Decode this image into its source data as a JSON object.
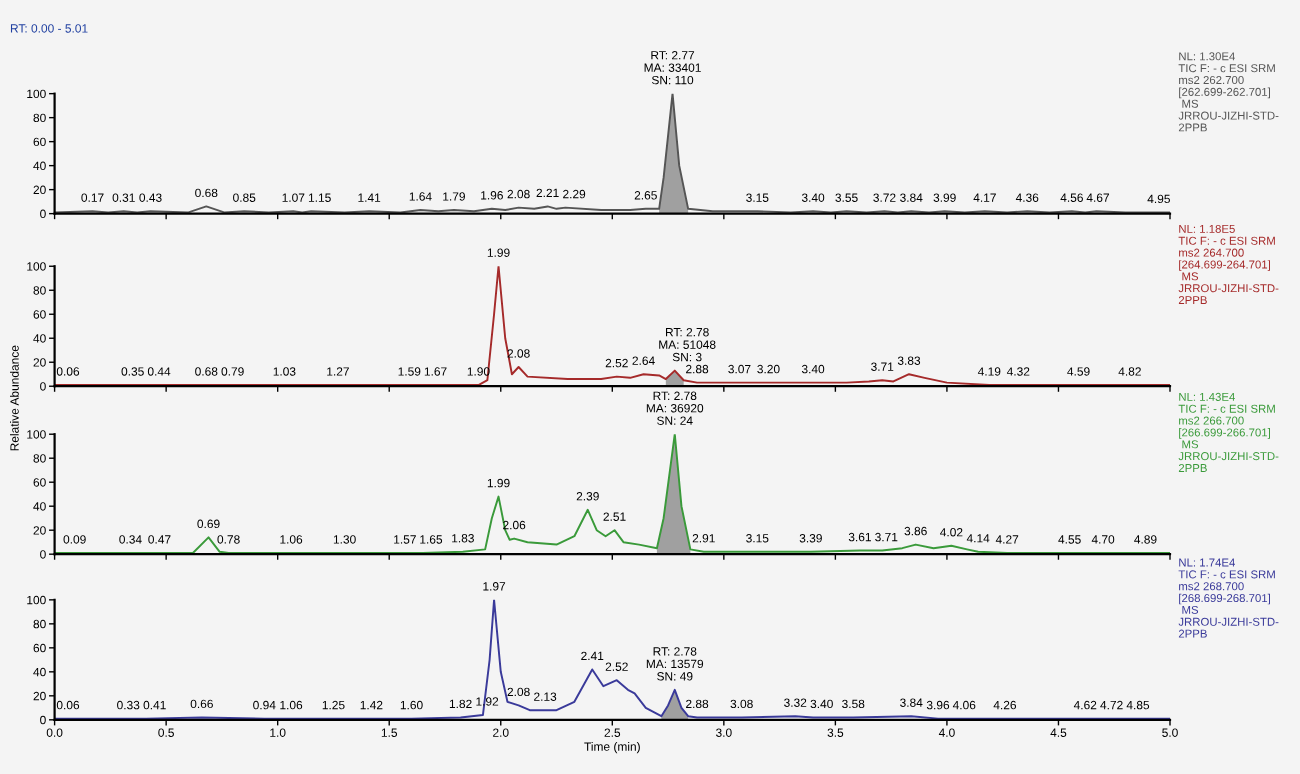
{
  "chart_data": [
    {
      "type": "line",
      "title": "RT: 0.00 - 5.01",
      "xlim": [
        0,
        5
      ],
      "xticks": [
        0.0,
        0.5,
        1.0,
        1.5,
        2.0,
        2.5,
        3.0,
        3.5,
        4.0,
        4.5,
        5.0
      ],
      "ylim": [
        0,
        100
      ],
      "yticks": [
        0,
        20,
        40,
        60,
        80,
        100
      ],
      "tick_labels": "y",
      "grid": false,
      "legend": false,
      "series": [
        {
          "color": "#555555",
          "x": [
            0,
            0.17,
            0.24,
            0.31,
            0.37,
            0.43,
            0.6,
            0.68,
            0.76,
            0.85,
            0.96,
            1.07,
            1.11,
            1.15,
            1.3,
            1.41,
            1.55,
            1.64,
            1.72,
            1.79,
            1.88,
            1.96,
            2.02,
            2.08,
            2.15,
            2.21,
            2.25,
            2.29,
            2.45,
            2.58,
            2.65,
            2.71,
            2.73,
            2.77,
            2.8,
            2.84,
            2.95,
            3.15,
            3.3,
            3.4,
            3.48,
            3.55,
            3.64,
            3.72,
            3.78,
            3.84,
            3.92,
            3.99,
            4.08,
            4.17,
            4.27,
            4.36,
            4.46,
            4.56,
            4.62,
            4.67,
            4.8,
            4.95,
            5.0
          ],
          "values": [
            1,
            2,
            1,
            2,
            1,
            2,
            1,
            6,
            1,
            2,
            1,
            2,
            1,
            2,
            1,
            2,
            1,
            3,
            2,
            3,
            2,
            4,
            3,
            5,
            4,
            6,
            4,
            5,
            3,
            3,
            4,
            4,
            30,
            100,
            40,
            4,
            2,
            2,
            1,
            2,
            1,
            2,
            1,
            2,
            1,
            2,
            1,
            2,
            1,
            2,
            1,
            2,
            1,
            2,
            1,
            2,
            1,
            1,
            1
          ]
        },
        {
          "type": "area",
          "color": "#a0a0a0",
          "x": [
            2.71,
            2.73,
            2.77,
            2.8,
            2.84
          ],
          "values": [
            4,
            30,
            100,
            40,
            4
          ]
        }
      ],
      "annotations": [
        "NL: 1.30E4\nTIC F: - c ESI SRM\nms2 262.700\n[262.699-262.701]\n MS\nJRROU-JIZHI-STD-\n2PPB",
        {
          "text": "0.17",
          "x": 0.17,
          "y": 2
        },
        {
          "text": "0.31",
          "x": 0.31,
          "y": 2
        },
        {
          "text": "0.43",
          "x": 0.43,
          "y": 2
        },
        {
          "text": "0.68",
          "x": 0.68,
          "y": 6
        },
        {
          "text": "0.85",
          "x": 0.85,
          "y": 2
        },
        {
          "text": "1.07",
          "x": 1.07,
          "y": 2
        },
        {
          "text": "1.15",
          "x": 1.15,
          "y": 2
        },
        {
          "text": "1.41",
          "x": 1.41,
          "y": 2
        },
        {
          "text": "1.64",
          "x": 1.64,
          "y": 3
        },
        {
          "text": "1.79",
          "x": 1.79,
          "y": 3
        },
        {
          "text": "1.96",
          "x": 1.96,
          "y": 4
        },
        {
          "text": "2.08",
          "x": 2.08,
          "y": 5
        },
        {
          "text": "2.21",
          "x": 2.21,
          "y": 6
        },
        {
          "text": "2.29",
          "x": 2.29,
          "y": 5
        },
        {
          "text": "2.65",
          "x": 2.65,
          "y": 4
        },
        {
          "text": "RT: 2.77\nMA: 33401\nSN: 110",
          "x": 2.77,
          "y": 100
        },
        {
          "text": "3.15",
          "x": 3.15,
          "y": 2
        },
        {
          "text": "3.40",
          "x": 3.4,
          "y": 2
        },
        {
          "text": "3.55",
          "x": 3.55,
          "y": 2
        },
        {
          "text": "3.72",
          "x": 3.72,
          "y": 2
        },
        {
          "text": "3.84",
          "x": 3.84,
          "y": 2
        },
        {
          "text": "3.99",
          "x": 3.99,
          "y": 2
        },
        {
          "text": "4.17",
          "x": 4.17,
          "y": 2
        },
        {
          "text": "4.36",
          "x": 4.36,
          "y": 2
        },
        {
          "text": "4.56",
          "x": 4.56,
          "y": 2
        },
        {
          "text": "4.67",
          "x": 4.67,
          "y": 2
        },
        {
          "text": "4.95",
          "x": 4.95,
          "y": 1
        }
      ]
    },
    {
      "type": "line",
      "ylabel": "Relative Abundance",
      "xlim": [
        0,
        5
      ],
      "xticks": [
        0.0,
        0.5,
        1.0,
        1.5,
        2.0,
        2.5,
        3.0,
        3.5,
        4.0,
        4.5,
        5.0
      ],
      "ylim": [
        0,
        100
      ],
      "yticks": [
        0,
        20,
        40,
        60,
        80,
        100
      ],
      "tick_labels": "y",
      "grid": false,
      "legend": false,
      "series": [
        {
          "color": "#a52a2a",
          "x": [
            0,
            0.06,
            0.2,
            0.35,
            0.44,
            0.68,
            0.79,
            1.03,
            1.27,
            1.59,
            1.67,
            1.9,
            1.94,
            1.97,
            1.99,
            2.02,
            2.05,
            2.08,
            2.12,
            2.3,
            2.45,
            2.52,
            2.58,
            2.64,
            2.71,
            2.74,
            2.78,
            2.82,
            2.88,
            3.07,
            3.2,
            3.4,
            3.55,
            3.65,
            3.71,
            3.76,
            3.83,
            3.9,
            4.0,
            4.19,
            4.32,
            4.59,
            4.82,
            5.0
          ],
          "values": [
            1,
            1,
            1,
            1,
            1,
            1,
            1,
            1,
            1,
            1,
            1,
            1,
            5,
            60,
            100,
            40,
            10,
            16,
            8,
            6,
            6,
            8,
            7,
            10,
            9,
            6,
            13,
            5,
            3,
            3,
            3,
            3,
            3,
            4,
            5,
            4,
            10,
            7,
            3,
            1,
            1,
            1,
            1,
            1
          ]
        },
        {
          "type": "area",
          "color": "#a0a0a0",
          "x": [
            2.74,
            2.76,
            2.78,
            2.8,
            2.82
          ],
          "values": [
            6,
            10,
            13,
            9,
            5
          ]
        }
      ],
      "annotations": [
        "NL: 1.18E5\nTIC F: - c ESI SRM\nms2 264.700\n[264.699-264.701]\n MS\nJRROU-JIZHI-STD-\n2PPB",
        {
          "text": "0.06",
          "x": 0.06,
          "y": 1
        },
        {
          "text": "0.35",
          "x": 0.35,
          "y": 1
        },
        {
          "text": "0.44",
          "x": 0.44,
          "y": 1
        },
        {
          "text": "0.68",
          "x": 0.68,
          "y": 1
        },
        {
          "text": "0.79",
          "x": 0.79,
          "y": 1
        },
        {
          "text": "1.03",
          "x": 1.03,
          "y": 1
        },
        {
          "text": "1.27",
          "x": 1.27,
          "y": 1
        },
        {
          "text": "1.59",
          "x": 1.59,
          "y": 1
        },
        {
          "text": "1.67",
          "x": 1.67,
          "y": 1
        },
        {
          "text": "1.90",
          "x": 1.9,
          "y": 1
        },
        {
          "text": "1.99",
          "x": 1.99,
          "y": 100
        },
        {
          "text": "2.08",
          "x": 2.08,
          "y": 16
        },
        {
          "text": "2.52",
          "x": 2.52,
          "y": 8
        },
        {
          "text": "2.64",
          "x": 2.64,
          "y": 10
        },
        {
          "text": "RT: 2.78\nMA: 51048\nSN: 3",
          "x": 2.78,
          "y": 13
        },
        {
          "text": "2.88",
          "x": 2.88,
          "y": 3
        },
        {
          "text": "3.07",
          "x": 3.07,
          "y": 3
        },
        {
          "text": "3.20",
          "x": 3.2,
          "y": 3
        },
        {
          "text": "3.40",
          "x": 3.4,
          "y": 3
        },
        {
          "text": "3.71",
          "x": 3.71,
          "y": 5
        },
        {
          "text": "3.83",
          "x": 3.83,
          "y": 10
        },
        {
          "text": "4.19",
          "x": 4.19,
          "y": 1
        },
        {
          "text": "4.32",
          "x": 4.32,
          "y": 1
        },
        {
          "text": "4.59",
          "x": 4.59,
          "y": 1
        },
        {
          "text": "4.82",
          "x": 4.82,
          "y": 1
        }
      ]
    },
    {
      "type": "line",
      "xlim": [
        0,
        5
      ],
      "xticks": [
        0.0,
        0.5,
        1.0,
        1.5,
        2.0,
        2.5,
        3.0,
        3.5,
        4.0,
        4.5,
        5.0
      ],
      "ylim": [
        0,
        100
      ],
      "yticks": [
        0,
        20,
        40,
        60,
        80,
        100
      ],
      "tick_labels": "y",
      "grid": false,
      "legend": false,
      "series": [
        {
          "color": "#3a9a3a",
          "x": [
            0,
            0.09,
            0.34,
            0.47,
            0.62,
            0.69,
            0.74,
            0.78,
            1.06,
            1.3,
            1.57,
            1.65,
            1.83,
            1.93,
            1.96,
            1.99,
            2.02,
            2.04,
            2.06,
            2.12,
            2.25,
            2.33,
            2.39,
            2.43,
            2.47,
            2.51,
            2.55,
            2.62,
            2.7,
            2.73,
            2.78,
            2.81,
            2.85,
            2.91,
            3.15,
            3.39,
            3.61,
            3.71,
            3.8,
            3.86,
            3.94,
            4.02,
            4.09,
            4.14,
            4.27,
            4.55,
            4.7,
            4.89,
            5.0
          ],
          "values": [
            1,
            1,
            1,
            1,
            1,
            14,
            2,
            1,
            1,
            1,
            1,
            1,
            2,
            4,
            30,
            48,
            20,
            12,
            13,
            10,
            8,
            15,
            37,
            20,
            15,
            20,
            10,
            8,
            5,
            30,
            100,
            40,
            4,
            2,
            2,
            2,
            3,
            3,
            5,
            8,
            5,
            7,
            4,
            2,
            1,
            1,
            1,
            1,
            1
          ]
        },
        {
          "type": "area",
          "color": "#a0a0a0",
          "x": [
            2.7,
            2.73,
            2.78,
            2.81,
            2.85
          ],
          "values": [
            5,
            30,
            100,
            40,
            4
          ]
        }
      ],
      "annotations": [
        "NL: 1.43E4\nTIC F: - c ESI SRM\nms2 266.700\n[266.699-266.701]\n MS\nJRROU-JIZHI-STD-\n2PPB",
        {
          "text": "0.09",
          "x": 0.09,
          "y": 1
        },
        {
          "text": "0.34",
          "x": 0.34,
          "y": 1
        },
        {
          "text": "0.47",
          "x": 0.47,
          "y": 1
        },
        {
          "text": "0.69",
          "x": 0.69,
          "y": 14
        },
        {
          "text": "0.78",
          "x": 0.78,
          "y": 1
        },
        {
          "text": "1.06",
          "x": 1.06,
          "y": 1
        },
        {
          "text": "1.30",
          "x": 1.3,
          "y": 1
        },
        {
          "text": "1.57",
          "x": 1.57,
          "y": 1
        },
        {
          "text": "1.65",
          "x": 1.65,
          "y": 1
        },
        {
          "text": "1.83",
          "x": 1.83,
          "y": 2
        },
        {
          "text": "1.99",
          "x": 1.99,
          "y": 48
        },
        {
          "text": "2.06",
          "x": 2.06,
          "y": 13
        },
        {
          "text": "2.39",
          "x": 2.39,
          "y": 37
        },
        {
          "text": "2.51",
          "x": 2.51,
          "y": 20
        },
        {
          "text": "RT: 2.78\nMA: 36920\nSN: 24",
          "x": 2.78,
          "y": 100
        },
        {
          "text": "2.91",
          "x": 2.91,
          "y": 2
        },
        {
          "text": "3.15",
          "x": 3.15,
          "y": 2
        },
        {
          "text": "3.39",
          "x": 3.39,
          "y": 2
        },
        {
          "text": "3.61",
          "x": 3.61,
          "y": 3
        },
        {
          "text": "3.71",
          "x": 3.71,
          "y": 3
        },
        {
          "text": "3.86",
          "x": 3.86,
          "y": 8
        },
        {
          "text": "4.02",
          "x": 4.02,
          "y": 7
        },
        {
          "text": "4.14",
          "x": 4.14,
          "y": 2
        },
        {
          "text": "4.27",
          "x": 4.27,
          "y": 1
        },
        {
          "text": "4.55",
          "x": 4.55,
          "y": 1
        },
        {
          "text": "4.70",
          "x": 4.7,
          "y": 1
        },
        {
          "text": "4.89",
          "x": 4.89,
          "y": 1
        }
      ]
    },
    {
      "type": "line",
      "xlabel": "Time (min)",
      "xlim": [
        0,
        5
      ],
      "xticks": [
        {
          "value": 0,
          "label": "0.0"
        },
        0.5,
        {
          "value": 1,
          "label": "1.0"
        },
        1.5,
        {
          "value": 2,
          "label": "2.0"
        },
        2.5,
        {
          "value": 3,
          "label": "3.0"
        },
        3.5,
        {
          "value": 4,
          "label": "4.0"
        },
        4.5,
        {
          "value": 5,
          "label": "5.0"
        }
      ],
      "ylim": [
        0,
        100
      ],
      "yticks": [
        0,
        20,
        40,
        60,
        80,
        100
      ],
      "grid": false,
      "legend": false,
      "series": [
        {
          "color": "#3a3a9a",
          "x": [
            0,
            0.06,
            0.33,
            0.41,
            0.66,
            0.94,
            1.06,
            1.25,
            1.42,
            1.6,
            1.82,
            1.92,
            1.95,
            1.97,
            2.0,
            2.03,
            2.08,
            2.13,
            2.25,
            2.33,
            2.41,
            2.46,
            2.52,
            2.57,
            2.6,
            2.65,
            2.72,
            2.75,
            2.78,
            2.81,
            2.84,
            2.88,
            3.08,
            3.32,
            3.4,
            3.58,
            3.84,
            3.96,
            4.06,
            4.26,
            4.62,
            4.72,
            4.85,
            5.0
          ],
          "values": [
            1,
            1,
            1,
            1,
            2,
            1,
            1,
            1,
            1,
            1,
            2,
            4,
            50,
            100,
            40,
            15,
            12,
            8,
            8,
            15,
            42,
            28,
            33,
            25,
            22,
            10,
            3,
            12,
            25,
            10,
            3,
            2,
            2,
            3,
            2,
            2,
            3,
            1,
            1,
            1,
            1,
            1,
            1,
            1
          ]
        },
        {
          "type": "area",
          "color": "#a0a0a0",
          "x": [
            2.72,
            2.75,
            2.78,
            2.81,
            2.84
          ],
          "values": [
            3,
            12,
            25,
            10,
            3
          ]
        }
      ],
      "annotations": [
        "NL: 1.74E4\nTIC F: - c ESI SRM\nms2 268.700\n[268.699-268.701]\n MS\nJRROU-JIZHI-STD-\n2PPB",
        {
          "text": "0.06",
          "x": 0.06,
          "y": 1
        },
        {
          "text": "0.33",
          "x": 0.33,
          "y": 1
        },
        {
          "text": "0.41",
          "x": 0.41,
          "y": 1
        },
        {
          "text": "0.66",
          "x": 0.66,
          "y": 2
        },
        {
          "text": "0.94",
          "x": 0.94,
          "y": 1
        },
        {
          "text": "1.06",
          "x": 1.06,
          "y": 1
        },
        {
          "text": "1.25",
          "x": 1.25,
          "y": 1
        },
        {
          "text": "1.42",
          "x": 1.42,
          "y": 1
        },
        {
          "text": "1.60",
          "x": 1.6,
          "y": 1
        },
        {
          "text": "1.82",
          "x": 1.82,
          "y": 2
        },
        {
          "text": "1.92",
          "x": 1.92,
          "y": 4
        },
        {
          "text": "1.97",
          "x": 1.97,
          "y": 100
        },
        {
          "text": "2.08",
          "x": 2.08,
          "y": 12
        },
        {
          "text": "2.13",
          "x": 2.13,
          "y": 8
        },
        {
          "text": "2.41",
          "x": 2.41,
          "y": 42
        },
        {
          "text": "2.52",
          "x": 2.52,
          "y": 33
        },
        {
          "text": "RT: 2.78\nMA: 13579\nSN: 49",
          "x": 2.78,
          "y": 25
        },
        {
          "text": "2.88",
          "x": 2.88,
          "y": 2
        },
        {
          "text": "3.08",
          "x": 3.08,
          "y": 2
        },
        {
          "text": "3.32",
          "x": 3.32,
          "y": 3
        },
        {
          "text": "3.40",
          "x": 3.4,
          "y": 2
        },
        {
          "text": "3.58",
          "x": 3.58,
          "y": 2
        },
        {
          "text": "3.84",
          "x": 3.84,
          "y": 3
        },
        {
          "text": "3.96",
          "x": 3.96,
          "y": 1
        },
        {
          "text": "4.06",
          "x": 4.06,
          "y": 1
        },
        {
          "text": "4.26",
          "x": 4.26,
          "y": 1
        },
        {
          "text": "4.62",
          "x": 4.62,
          "y": 1
        },
        {
          "text": "4.72",
          "x": 4.72,
          "y": 1
        },
        {
          "text": "4.85",
          "x": 4.85,
          "y": 1
        }
      ]
    }
  ]
}
